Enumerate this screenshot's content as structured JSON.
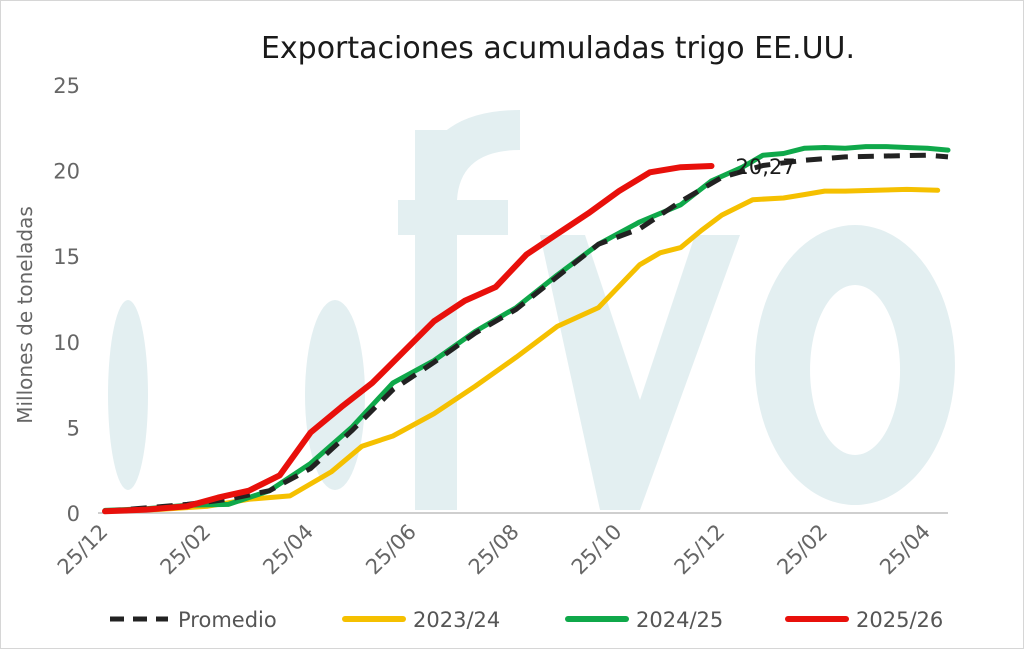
{
  "chart_data": {
    "type": "line",
    "title": "Exportaciones acumuladas trigo EE.UU.",
    "xlabel": "",
    "ylabel": "Millones de toneladas",
    "ylim": [
      0,
      25
    ],
    "y_ticks": [
      "0",
      "5",
      "10",
      "15",
      "20",
      "25"
    ],
    "x_tick_labels": [
      "25/12",
      "25/02",
      "25/04",
      "25/06",
      "25/08",
      "25/10",
      "25/12",
      "25/02",
      "25/04"
    ],
    "x_range_months": [
      0,
      16.4
    ],
    "grid": false,
    "legend_position": "bottom",
    "watermark": "fyo",
    "annotation": {
      "text": "20,27",
      "series": "2025/26"
    },
    "series": [
      {
        "name": "Promedio",
        "color": "#222222",
        "dash": true,
        "x": [
          0,
          0.8,
          1.6,
          2.4,
          3.2,
          4.0,
          4.8,
          5.6,
          6.4,
          7.2,
          8.0,
          8.8,
          9.6,
          10.4,
          11.2,
          12.0,
          12.8,
          13.6,
          14.4,
          15.2,
          16.0,
          16.4
        ],
        "values": [
          0.1,
          0.3,
          0.5,
          0.8,
          1.3,
          2.6,
          4.8,
          7.2,
          8.8,
          10.5,
          11.9,
          13.8,
          15.7,
          16.6,
          18.2,
          19.6,
          20.3,
          20.6,
          20.8,
          20.85,
          20.9,
          20.8
        ]
      },
      {
        "name": "2023/24",
        "color": "#f5c000",
        "dash": false,
        "x": [
          0,
          1.0,
          2.0,
          2.8,
          3.6,
          4.4,
          5.0,
          5.6,
          6.4,
          7.2,
          8.0,
          8.8,
          9.6,
          10.4,
          10.8,
          11.2,
          11.6,
          12.0,
          12.6,
          13.2,
          13.6,
          14.0,
          14.4,
          15.0,
          15.6,
          16.2
        ],
        "values": [
          0.1,
          0.2,
          0.4,
          0.8,
          1.0,
          2.4,
          3.9,
          4.5,
          5.8,
          7.4,
          9.1,
          10.9,
          12.0,
          14.5,
          15.2,
          15.5,
          16.5,
          17.4,
          18.3,
          18.4,
          18.6,
          18.8,
          18.8,
          18.85,
          18.9,
          18.85
        ]
      },
      {
        "name": "2024/25",
        "color": "#0fa84a",
        "dash": false,
        "x": [
          0,
          0.8,
          1.6,
          2.4,
          3.2,
          4.0,
          4.8,
          5.6,
          6.4,
          7.2,
          8.0,
          8.8,
          9.6,
          10.4,
          11.2,
          11.8,
          12.4,
          12.8,
          13.2,
          13.6,
          14.0,
          14.4,
          14.8,
          15.2,
          15.6,
          16.0,
          16.4
        ],
        "values": [
          0.15,
          0.25,
          0.45,
          0.5,
          1.3,
          2.9,
          5.0,
          7.6,
          8.9,
          10.6,
          12.0,
          13.9,
          15.7,
          17.0,
          18.0,
          19.4,
          20.2,
          20.9,
          21.0,
          21.3,
          21.35,
          21.3,
          21.4,
          21.4,
          21.35,
          21.3,
          21.2
        ]
      },
      {
        "name": "2025/26",
        "color": "#e8100b",
        "dash": false,
        "x": [
          0,
          0.8,
          1.6,
          2.2,
          2.8,
          3.4,
          4.0,
          4.6,
          5.2,
          5.8,
          6.4,
          7.0,
          7.6,
          8.2,
          8.8,
          9.4,
          10.0,
          10.6,
          11.2,
          11.8
        ],
        "values": [
          0.1,
          0.2,
          0.4,
          0.9,
          1.3,
          2.2,
          4.7,
          6.2,
          7.6,
          9.4,
          11.2,
          12.4,
          13.2,
          15.1,
          16.3,
          17.5,
          18.8,
          19.9,
          20.2,
          20.27
        ]
      }
    ]
  }
}
